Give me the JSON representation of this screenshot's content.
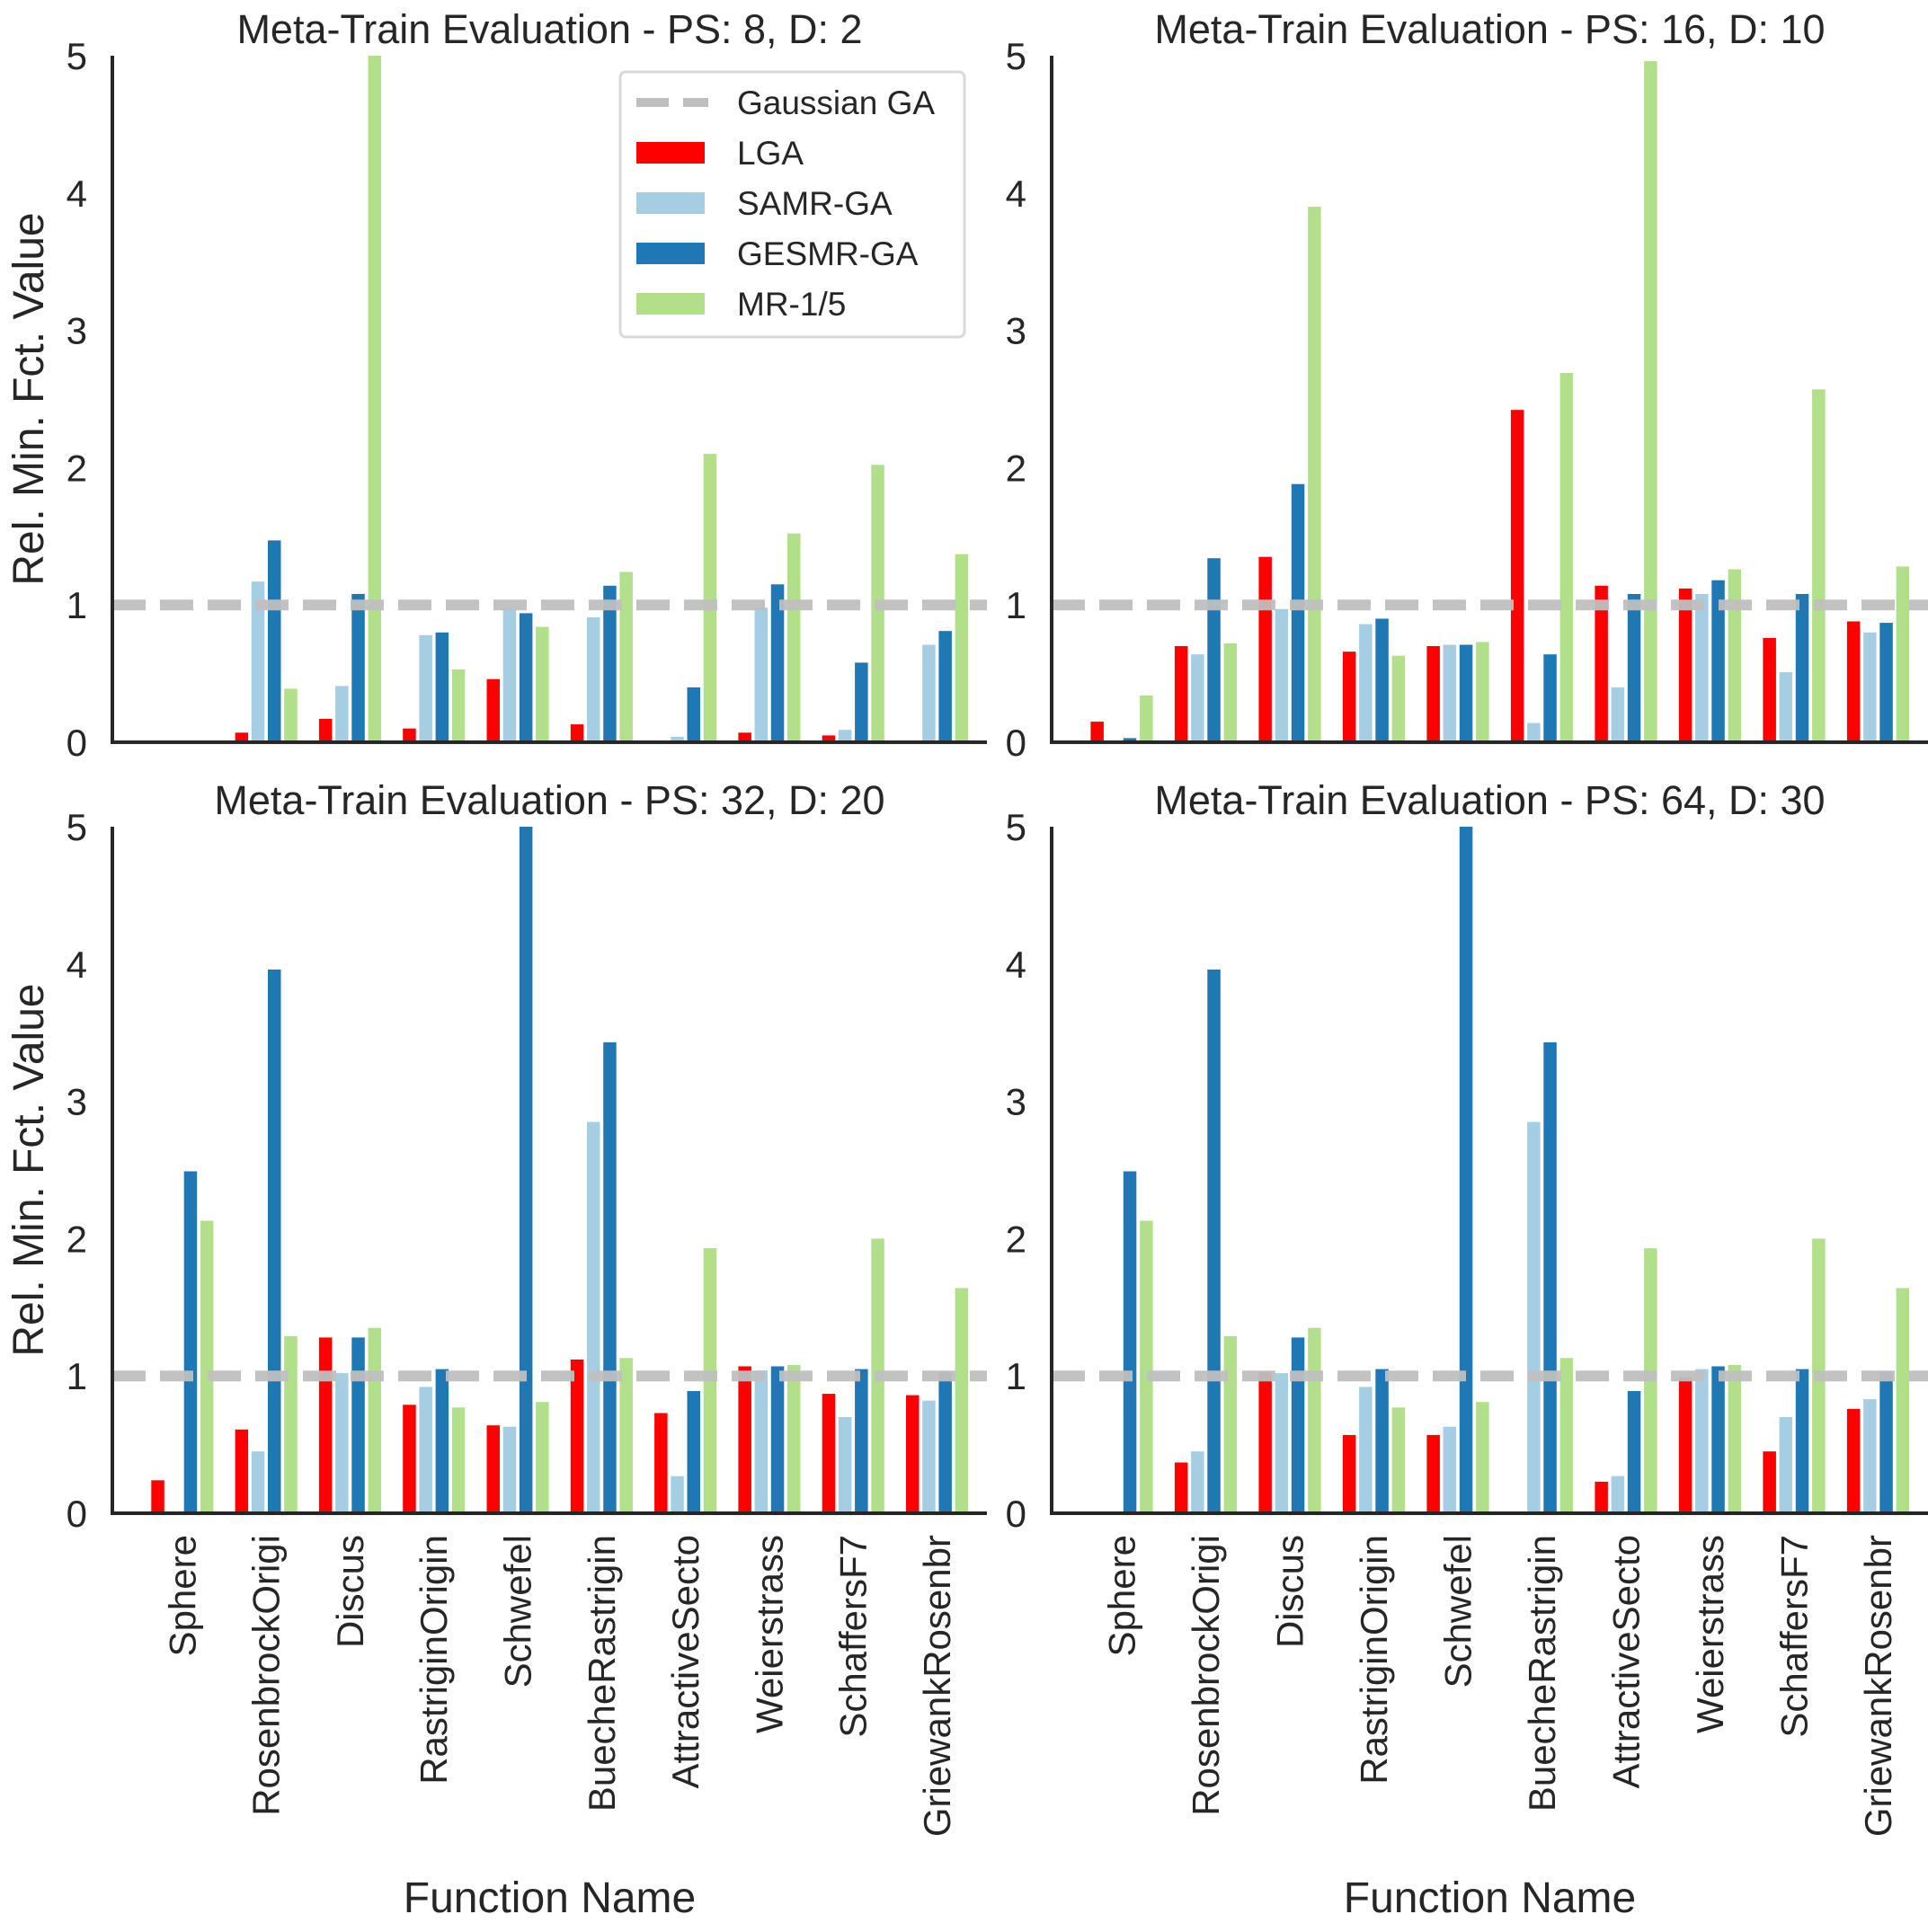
{
  "figure": {
    "ylabel": "Rel. Min. Fct. Value",
    "xlabel": "Function Name",
    "reference_line": {
      "label": "Gaussian GA",
      "value": 1,
      "color": "#bfbfbf"
    }
  },
  "legend": {
    "items": [
      {
        "label": "Gaussian GA",
        "type": "dashed-line",
        "color": "#bfbfbf"
      },
      {
        "label": "LGA",
        "type": "bar",
        "color": "#ff0000"
      },
      {
        "label": "SAMR-GA",
        "type": "bar",
        "color": "#a6cee3"
      },
      {
        "label": "GESMR-GA",
        "type": "bar",
        "color": "#1f78b4"
      },
      {
        "label": "MR-1/5",
        "type": "bar",
        "color": "#b2df8a"
      }
    ]
  },
  "chart_data": [
    {
      "type": "bar",
      "title": "Meta-Train Evaluation - PS: 8, D: 2",
      "xlabel": "",
      "ylabel": "Rel. Min. Fct. Value",
      "ylim": [
        0,
        5
      ],
      "yticks": [
        0,
        1,
        2,
        3,
        4,
        5
      ],
      "grid": false,
      "legend_position": "upper right",
      "categories": [
        "Sphere",
        "RosenbrockOrigi",
        "Discus",
        "RastriginOrigin",
        "Schwefel",
        "BuecheRastrigin",
        "AttractiveSecto",
        "Weierstrass",
        "SchaffersF7",
        "GriewankRosenbr"
      ],
      "reference_line": {
        "name": "Gaussian GA",
        "y": 1
      },
      "series": [
        {
          "name": "LGA",
          "color": "#ff0000",
          "values": [
            0.0,
            0.07,
            0.17,
            0.1,
            0.46,
            0.13,
            0.0,
            0.07,
            0.05,
            0.0
          ]
        },
        {
          "name": "SAMR-GA",
          "color": "#a6cee3",
          "values": [
            0.0,
            1.17,
            0.41,
            0.78,
            0.98,
            0.91,
            0.04,
            0.98,
            0.09,
            0.71
          ]
        },
        {
          "name": "GESMR-GA",
          "color": "#1f78b4",
          "values": [
            0.0,
            1.47,
            1.08,
            0.8,
            0.94,
            1.14,
            0.4,
            1.15,
            0.58,
            0.81
          ]
        },
        {
          "name": "MR-1/5",
          "color": "#b2df8a",
          "values": [
            0.0,
            0.39,
            5.0,
            0.53,
            0.84,
            1.24,
            2.1,
            1.52,
            2.02,
            1.37
          ]
        }
      ]
    },
    {
      "type": "bar",
      "title": "Meta-Train Evaluation - PS: 16, D: 10",
      "xlabel": "",
      "ylabel": "",
      "ylim": [
        0,
        5
      ],
      "yticks": [
        0,
        1,
        2,
        3,
        4,
        5
      ],
      "grid": false,
      "categories": [
        "Sphere",
        "RosenbrockOrigi",
        "Discus",
        "RastriginOrigin",
        "Schwefel",
        "BuecheRastrigin",
        "AttractiveSecto",
        "Weierstrass",
        "SchaffersF7",
        "GriewankRosenbr"
      ],
      "reference_line": {
        "name": "Gaussian GA",
        "y": 1
      },
      "series": [
        {
          "name": "LGA",
          "color": "#ff0000",
          "values": [
            0.15,
            0.7,
            1.35,
            0.66,
            0.7,
            2.42,
            1.14,
            1.12,
            0.76,
            0.88
          ]
        },
        {
          "name": "SAMR-GA",
          "color": "#a6cee3",
          "values": [
            0.0,
            0.64,
            0.97,
            0.86,
            0.71,
            0.14,
            0.4,
            1.08,
            0.51,
            0.8
          ]
        },
        {
          "name": "GESMR-GA",
          "color": "#1f78b4",
          "values": [
            0.03,
            1.34,
            1.88,
            0.9,
            0.71,
            0.64,
            1.08,
            1.18,
            1.08,
            0.87
          ]
        },
        {
          "name": "MR-1/5",
          "color": "#b2df8a",
          "values": [
            0.34,
            0.72,
            3.9,
            0.63,
            0.73,
            2.69,
            4.96,
            1.26,
            2.57,
            1.28
          ]
        }
      ]
    },
    {
      "type": "bar",
      "title": "Meta-Train Evaluation - PS: 32, D: 20",
      "xlabel": "Function Name",
      "ylabel": "Rel. Min. Fct. Value",
      "ylim": [
        0,
        5
      ],
      "yticks": [
        0,
        1,
        2,
        3,
        4,
        5
      ],
      "grid": false,
      "categories": [
        "Sphere",
        "RosenbrockOrigi",
        "Discus",
        "RastriginOrigin",
        "Schwefel",
        "BuecheRastrigin",
        "AttractiveSecto",
        "Weierstrass",
        "SchaffersF7",
        "GriewankRosenbr"
      ],
      "reference_line": {
        "name": "Gaussian GA",
        "y": 1
      },
      "series": [
        {
          "name": "LGA",
          "color": "#ff0000",
          "values": [
            0.24,
            0.61,
            1.28,
            0.79,
            0.64,
            1.12,
            0.73,
            1.07,
            0.87,
            0.86
          ]
        },
        {
          "name": "SAMR-GA",
          "color": "#a6cee3",
          "values": [
            0.01,
            0.45,
            1.02,
            0.92,
            0.63,
            2.85,
            0.27,
            1.04,
            0.7,
            0.82
          ]
        },
        {
          "name": "GESMR-GA",
          "color": "#1f78b4",
          "values": [
            2.49,
            3.96,
            1.28,
            1.05,
            5.0,
            3.43,
            0.89,
            1.07,
            1.05,
            1.03
          ]
        },
        {
          "name": "MR-1/5",
          "color": "#b2df8a",
          "values": [
            2.13,
            1.29,
            1.35,
            0.77,
            0.81,
            1.13,
            1.93,
            1.08,
            2.0,
            1.64
          ]
        }
      ]
    },
    {
      "type": "bar",
      "title": "Meta-Train Evaluation - PS: 64, D: 30",
      "xlabel": "Function Name",
      "ylabel": "",
      "ylim": [
        0,
        5
      ],
      "yticks": [
        0,
        1,
        2,
        3,
        4,
        5
      ],
      "grid": false,
      "categories": [
        "Sphere",
        "RosenbrockOrigi",
        "Discus",
        "RastriginOrigin",
        "Schwefel",
        "BuecheRastrigin",
        "AttractiveSecto",
        "Weierstrass",
        "SchaffersF7",
        "GriewankRosenbr"
      ],
      "reference_line": {
        "name": "Gaussian GA",
        "y": 1
      },
      "series": [
        {
          "name": "LGA",
          "color": "#ff0000",
          "values": [
            0.0,
            0.37,
            1.03,
            0.57,
            0.57,
            0.0,
            0.23,
            0.99,
            0.45,
            0.76
          ]
        },
        {
          "name": "SAMR-GA",
          "color": "#a6cee3",
          "values": [
            0.01,
            0.45,
            1.02,
            0.92,
            0.63,
            2.85,
            0.27,
            1.05,
            0.7,
            0.83
          ]
        },
        {
          "name": "GESMR-GA",
          "color": "#1f78b4",
          "values": [
            2.49,
            3.96,
            1.28,
            1.05,
            5.0,
            3.43,
            0.89,
            1.07,
            1.05,
            1.03
          ]
        },
        {
          "name": "MR-1/5",
          "color": "#b2df8a",
          "values": [
            2.13,
            1.29,
            1.35,
            0.77,
            0.81,
            1.13,
            1.93,
            1.08,
            2.0,
            1.64
          ]
        }
      ]
    }
  ]
}
